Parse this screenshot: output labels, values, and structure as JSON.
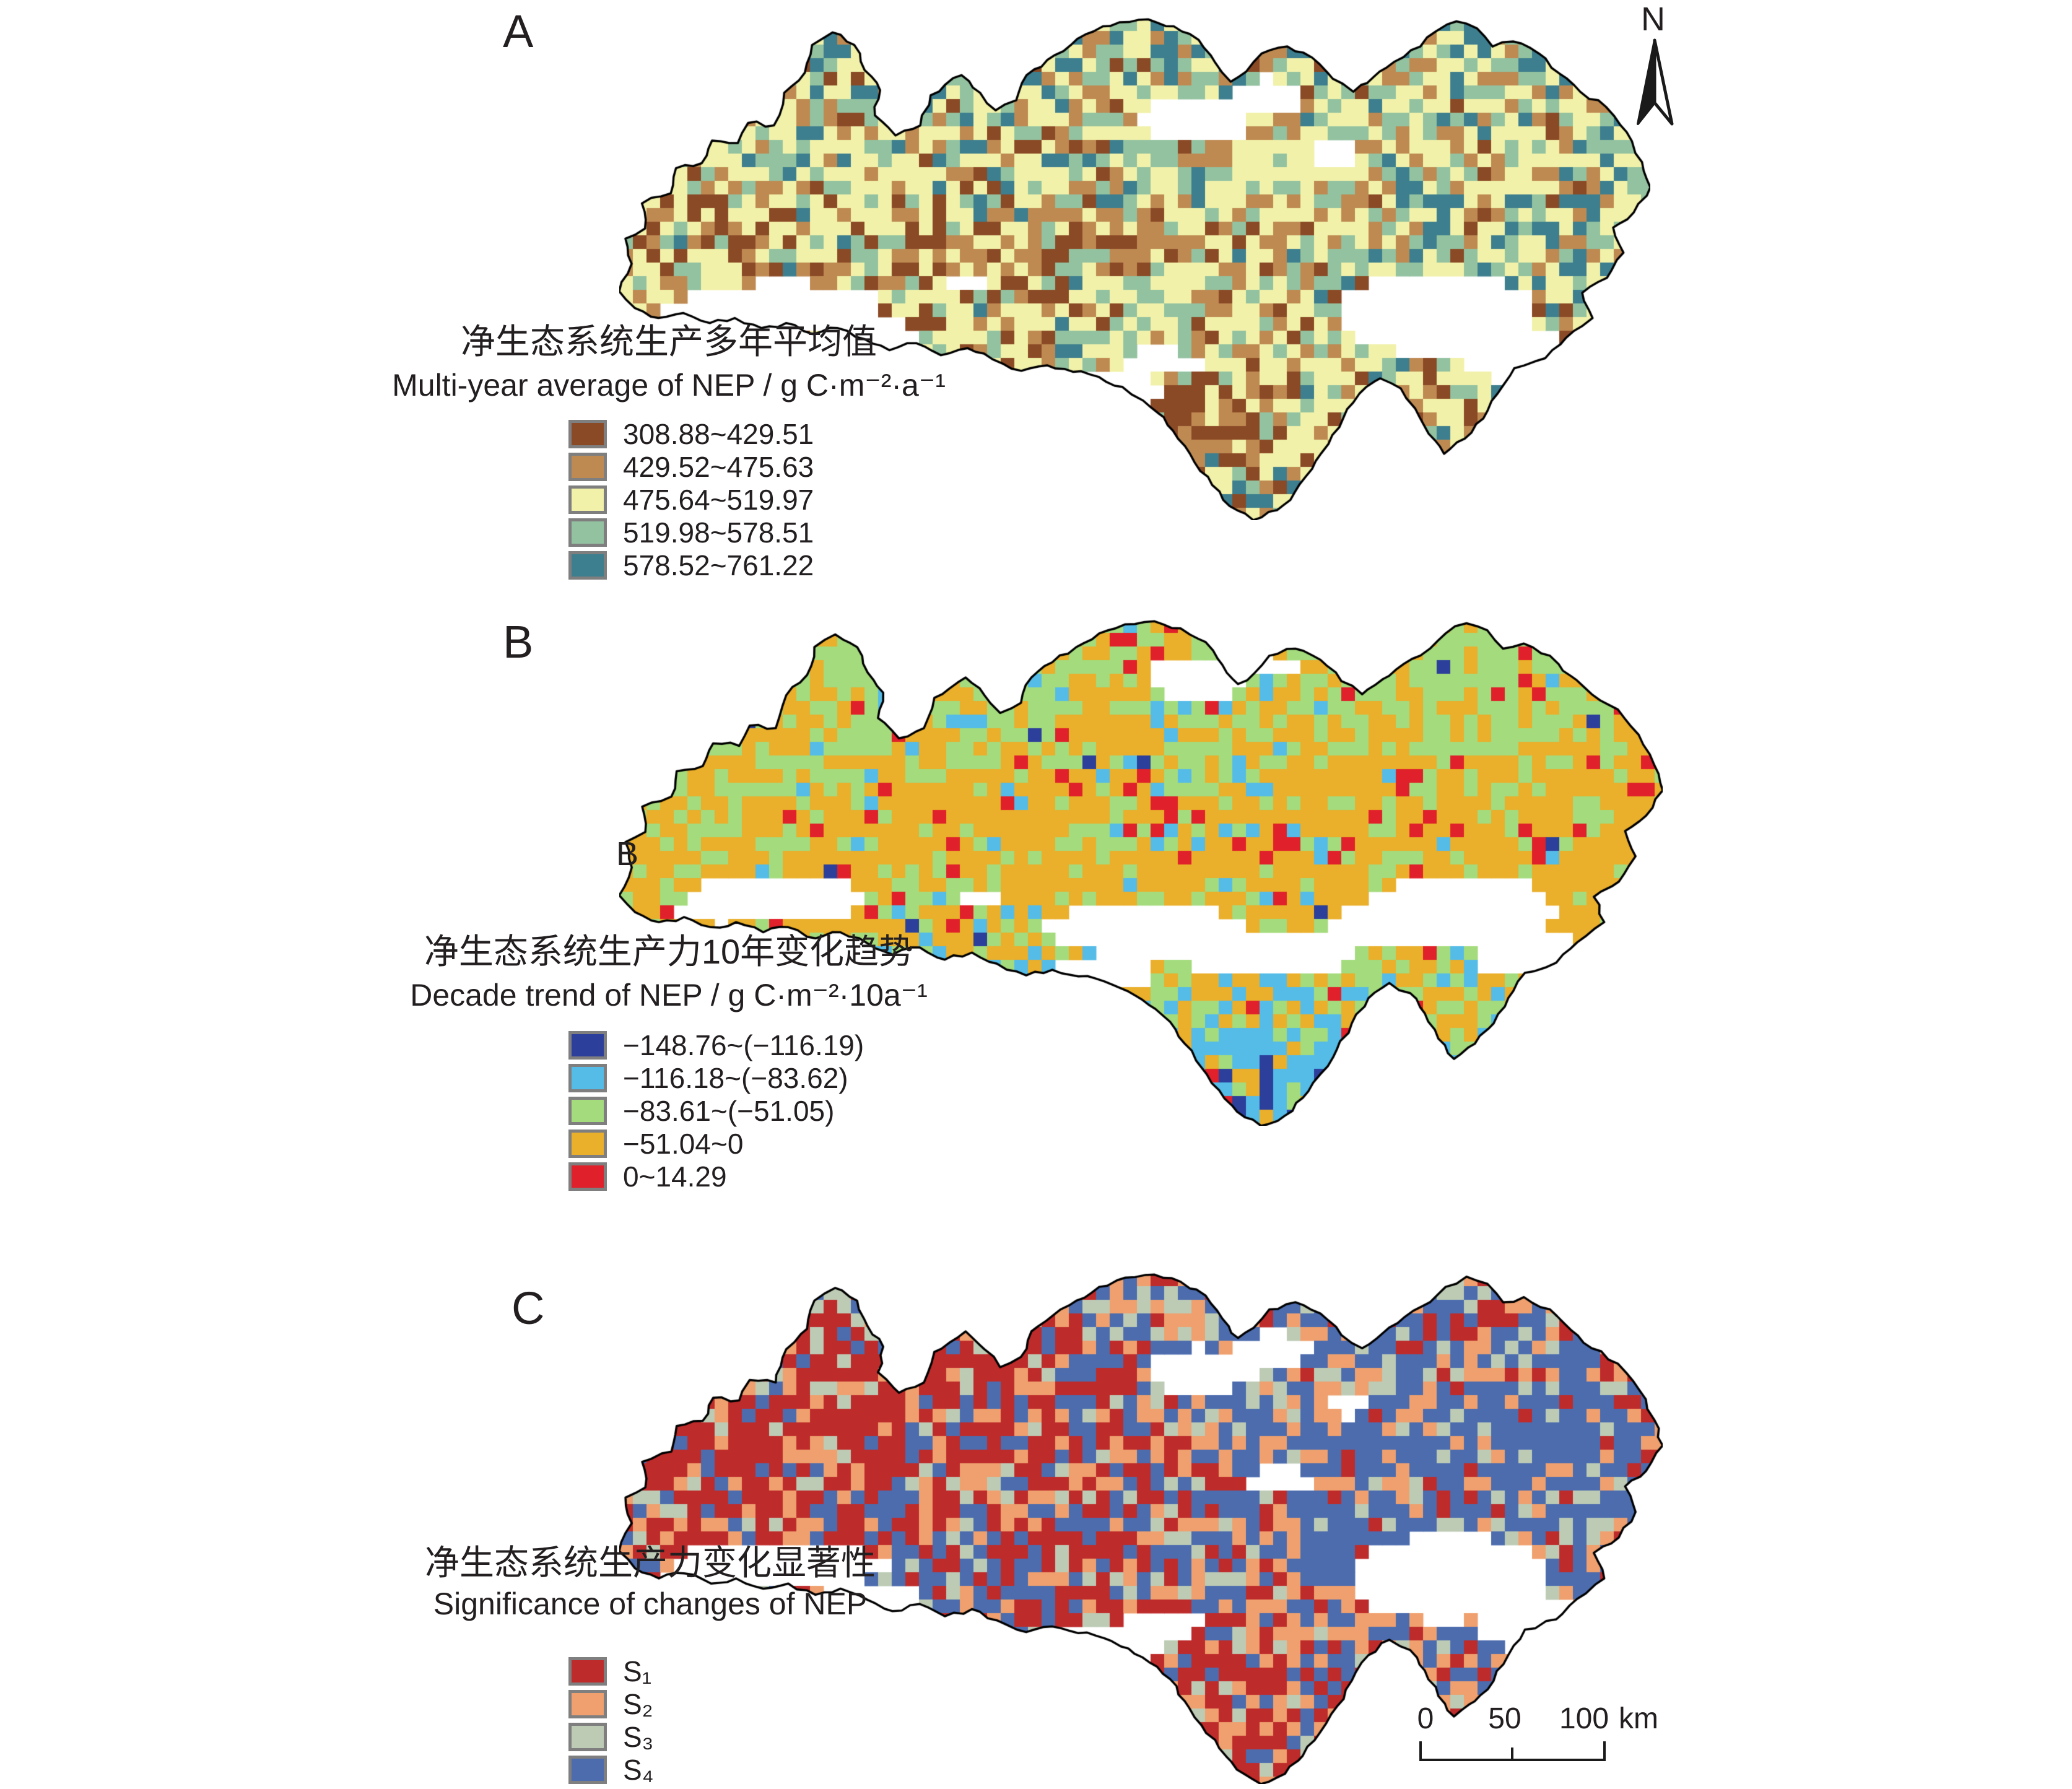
{
  "figure": {
    "background": "#ffffff",
    "outline_color": "#000000",
    "swatch_border_color": "#7f7f7f",
    "text_color": "#231f20",
    "panels": [
      {
        "id": "A",
        "label": "A",
        "legend": {
          "title_zh": "净生态系统生产多年平均值",
          "title_en": "Multi-year average of NEP / g C·m⁻²·a⁻¹",
          "items": [
            {
              "label": "308.88~429.51",
              "color": "#8b4a26"
            },
            {
              "label": "429.52~475.63",
              "color": "#be8a52"
            },
            {
              "label": "475.64~519.97",
              "color": "#f1f1a9"
            },
            {
              "label": "519.98~578.51",
              "color": "#93c2a0"
            },
            {
              "label": "578.52~761.22",
              "color": "#3d7f8e"
            }
          ]
        }
      },
      {
        "id": "B",
        "label": "B",
        "stray_label": "B",
        "legend": {
          "title_zh": "净生态系统生产力10年变化趋势",
          "title_en": "Decade trend of NEP / g C·m⁻²·10a⁻¹",
          "items": [
            {
              "label": "−148.76~(−116.19)",
              "color": "#2c3f9b"
            },
            {
              "label": "−116.18~(−83.62)",
              "color": "#55bce7"
            },
            {
              "label": "−83.61~(−51.05)",
              "color": "#a4db7d"
            },
            {
              "label": "−51.04~0",
              "color": "#eaaf2b"
            },
            {
              "label": "0~14.29",
              "color": "#e0202a"
            }
          ]
        }
      },
      {
        "id": "C",
        "label": "C",
        "legend": {
          "title_zh": "净生态系统生产力变化显著性",
          "title_en": "Significance of changes of NEP",
          "items": [
            {
              "label": "S₁",
              "color": "#be2b2b"
            },
            {
              "label": "S₂",
              "color": "#efa06e"
            },
            {
              "label": "S₃",
              "color": "#bdcbb5"
            },
            {
              "label": "S₄",
              "color": "#4c6cae"
            }
          ]
        }
      }
    ],
    "north_arrow": {
      "label": "N"
    },
    "scale_bar": {
      "ticks": [
        "0",
        "50",
        "100"
      ],
      "unit": "km"
    }
  }
}
